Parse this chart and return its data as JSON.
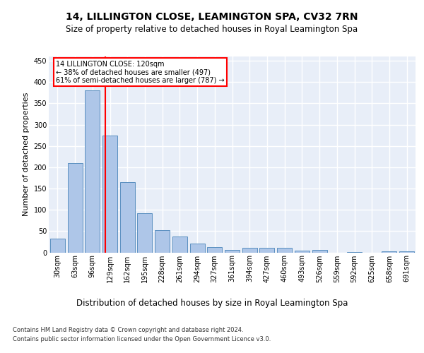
{
  "title": "14, LILLINGTON CLOSE, LEAMINGTON SPA, CV32 7RN",
  "subtitle": "Size of property relative to detached houses in Royal Leamington Spa",
  "xlabel": "Distribution of detached houses by size in Royal Leamington Spa",
  "ylabel": "Number of detached properties",
  "footer1": "Contains HM Land Registry data © Crown copyright and database right 2024.",
  "footer2": "Contains public sector information licensed under the Open Government Licence v3.0.",
  "bar_labels": [
    "30sqm",
    "63sqm",
    "96sqm",
    "129sqm",
    "162sqm",
    "195sqm",
    "228sqm",
    "261sqm",
    "294sqm",
    "327sqm",
    "361sqm",
    "394sqm",
    "427sqm",
    "460sqm",
    "493sqm",
    "526sqm",
    "559sqm",
    "592sqm",
    "625sqm",
    "658sqm",
    "691sqm"
  ],
  "bar_values": [
    32,
    210,
    380,
    275,
    165,
    92,
    52,
    38,
    20,
    12,
    6,
    11,
    11,
    10,
    4,
    5,
    0,
    1,
    0,
    3,
    3
  ],
  "bar_color": "#aec6e8",
  "bar_edge_color": "#5a8fc0",
  "background_color": "#e8eef8",
  "grid_color": "#ffffff",
  "marker_color": "red",
  "ylim": [
    0,
    460
  ],
  "bin_width": 33,
  "title_fontsize": 10,
  "subtitle_fontsize": 8.5,
  "ylabel_fontsize": 8,
  "xlabel_fontsize": 8.5,
  "tick_fontsize": 7,
  "annot_fontsize": 7,
  "footer_fontsize": 6
}
